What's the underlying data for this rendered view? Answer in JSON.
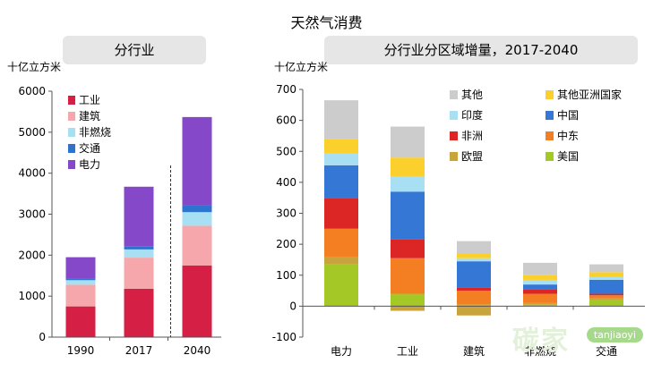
{
  "title": "天然气消费",
  "left_panel": {
    "header": "分行业",
    "unit": "十亿立方米"
  },
  "right_panel": {
    "header": "分行业分区域增量，2017-2040",
    "unit": "十亿立方米"
  },
  "watermark": {
    "text": "碳家",
    "pill": "tanjiaoyi"
  },
  "chart_data": [
    {
      "type": "bar",
      "stacked": true,
      "title": "分行业",
      "ylabel": "十亿立方米",
      "ylim": [
        0,
        6000
      ],
      "yticks": [
        0,
        1000,
        2000,
        3000,
        4000,
        5000,
        6000
      ],
      "categories": [
        "1990",
        "2017",
        "2040"
      ],
      "series": [
        {
          "name": "工业",
          "color": "#d51f45",
          "values": [
            750,
            1180,
            1750
          ]
        },
        {
          "name": "建筑",
          "color": "#f6a7ab",
          "values": [
            530,
            760,
            970
          ]
        },
        {
          "name": "非燃烧",
          "color": "#a8e0f3",
          "values": [
            110,
            200,
            330
          ]
        },
        {
          "name": "交通",
          "color": "#2e74cf",
          "values": [
            30,
            70,
            170
          ]
        },
        {
          "name": "电力",
          "color": "#8448c8",
          "values": [
            530,
            1460,
            2150
          ]
        }
      ],
      "legend": "upper-left",
      "divider_after": "2017"
    },
    {
      "type": "bar",
      "stacked": true,
      "title": "分行业分区域增量，2017-2040",
      "ylabel": "十亿立方米",
      "ylim": [
        -100,
        700
      ],
      "yticks": [
        -100,
        0,
        100,
        200,
        300,
        400,
        500,
        600,
        700
      ],
      "categories": [
        "电力",
        "工业",
        "建筑",
        "非燃烧",
        "交通"
      ],
      "series": [
        {
          "name": "美国",
          "color": "#a4c825",
          "values": [
            135,
            40,
            5,
            5,
            20
          ]
        },
        {
          "name": "欧盟",
          "color": "#c9a43c",
          "values": [
            25,
            -15,
            -30,
            5,
            5
          ]
        },
        {
          "name": "中东",
          "color": "#f47f22",
          "values": [
            90,
            115,
            45,
            30,
            10
          ]
        },
        {
          "name": "非洲",
          "color": "#dc2626",
          "values": [
            100,
            60,
            10,
            15,
            5
          ]
        },
        {
          "name": "中国",
          "color": "#3577d4",
          "values": [
            105,
            155,
            85,
            15,
            45
          ]
        },
        {
          "name": "印度",
          "color": "#a9dff3",
          "values": [
            40,
            50,
            10,
            15,
            10
          ]
        },
        {
          "name": "其他亚洲国家",
          "color": "#fbd02d",
          "values": [
            45,
            60,
            15,
            15,
            15
          ]
        },
        {
          "name": "其他",
          "color": "#cccccc",
          "values": [
            125,
            100,
            40,
            40,
            25
          ]
        }
      ],
      "legend": "top-right"
    }
  ]
}
